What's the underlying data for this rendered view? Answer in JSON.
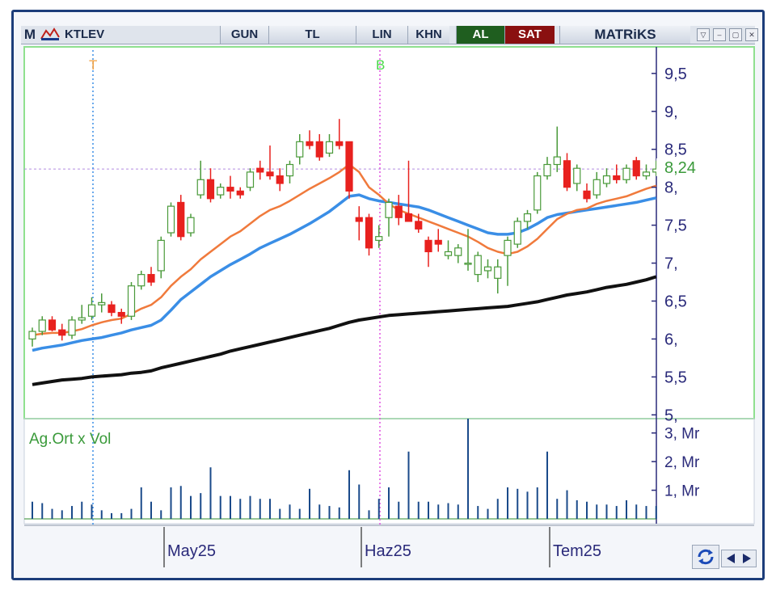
{
  "toolbar": {
    "logo": "M",
    "symbol": "KTLEV",
    "period": "GUN",
    "currency": "TL",
    "scale": "LIN",
    "khn": "KHN",
    "buy": "AL",
    "sell": "SAT",
    "brand": "MATRiKS"
  },
  "markers": {
    "t": "T",
    "b": "B"
  },
  "price_label": "8,24",
  "volume_label": "Ag.Ort x Vol",
  "x_labels": [
    "May25",
    "Haz25",
    "Tem25"
  ],
  "colors": {
    "up": "#4a9a3a",
    "down": "#e8211e",
    "ma_short": "#f07a3c",
    "ma_mid": "#3a8ee6",
    "ma_long": "#111111",
    "axis": "#2a2a7a"
  },
  "chart_data": [
    {
      "type": "candlestick",
      "y_ticks": [
        "5,",
        "5,5",
        "6,",
        "6,5",
        "7,",
        "7,5",
        "8,",
        "8,5",
        "9,",
        "9,5"
      ],
      "ylim": [
        4.95,
        9.85
      ],
      "last_price": 8.24,
      "ohlc": [
        [
          6.0,
          6.15,
          5.9,
          6.1
        ],
        [
          6.1,
          6.3,
          6.05,
          6.25
        ],
        [
          6.25,
          6.3,
          6.1,
          6.12
        ],
        [
          6.12,
          6.2,
          5.98,
          6.05
        ],
        [
          6.05,
          6.3,
          6.0,
          6.25
        ],
        [
          6.25,
          6.45,
          6.2,
          6.28
        ],
        [
          6.3,
          6.55,
          6.25,
          6.45
        ],
        [
          6.45,
          6.6,
          6.35,
          6.48
        ],
        [
          6.45,
          6.5,
          6.3,
          6.35
        ],
        [
          6.35,
          6.4,
          6.2,
          6.3
        ],
        [
          6.3,
          6.75,
          6.25,
          6.7
        ],
        [
          6.7,
          6.9,
          6.65,
          6.85
        ],
        [
          6.85,
          6.95,
          6.7,
          6.75
        ],
        [
          6.9,
          7.35,
          6.8,
          7.3
        ],
        [
          7.4,
          7.8,
          7.35,
          7.75
        ],
        [
          7.8,
          7.9,
          7.3,
          7.35
        ],
        [
          7.4,
          7.65,
          7.35,
          7.6
        ],
        [
          7.9,
          8.35,
          7.85,
          8.1
        ],
        [
          8.1,
          8.25,
          7.8,
          7.85
        ],
        [
          7.9,
          8.05,
          7.85,
          8.0
        ],
        [
          8.0,
          8.15,
          7.85,
          7.95
        ],
        [
          7.95,
          8.0,
          7.85,
          7.9
        ],
        [
          8.0,
          8.25,
          7.95,
          8.2
        ],
        [
          8.25,
          8.35,
          8.1,
          8.2
        ],
        [
          8.2,
          8.55,
          8.1,
          8.15
        ],
        [
          8.15,
          8.25,
          7.95,
          8.05
        ],
        [
          8.15,
          8.35,
          8.05,
          8.3
        ],
        [
          8.4,
          8.7,
          8.3,
          8.6
        ],
        [
          8.6,
          8.75,
          8.5,
          8.55
        ],
        [
          8.6,
          8.7,
          8.35,
          8.4
        ],
        [
          8.45,
          8.7,
          8.4,
          8.6
        ],
        [
          8.6,
          8.9,
          8.5,
          8.55
        ],
        [
          8.6,
          8.6,
          7.85,
          7.95
        ],
        [
          7.6,
          7.75,
          7.3,
          7.55
        ],
        [
          7.6,
          7.65,
          7.1,
          7.2
        ],
        [
          7.3,
          7.5,
          7.2,
          7.35
        ],
        [
          7.6,
          7.85,
          7.35,
          7.8
        ],
        [
          7.75,
          7.9,
          7.5,
          7.6
        ],
        [
          7.65,
          8.35,
          7.55,
          7.55
        ],
        [
          7.55,
          7.65,
          7.4,
          7.45
        ],
        [
          7.3,
          7.35,
          6.95,
          7.15
        ],
        [
          7.3,
          7.45,
          7.15,
          7.25
        ],
        [
          7.1,
          7.3,
          7.05,
          7.15
        ],
        [
          7.1,
          7.25,
          7.0,
          7.2
        ],
        [
          7.0,
          7.45,
          6.9,
          7.0
        ],
        [
          6.85,
          7.15,
          6.75,
          7.1
        ],
        [
          6.9,
          7.05,
          6.8,
          6.95
        ],
        [
          6.8,
          7.05,
          6.6,
          6.95
        ],
        [
          7.1,
          7.35,
          6.7,
          7.3
        ],
        [
          7.25,
          7.6,
          7.2,
          7.55
        ],
        [
          7.55,
          7.7,
          7.45,
          7.65
        ],
        [
          7.7,
          8.2,
          7.65,
          8.15
        ],
        [
          8.15,
          8.4,
          8.1,
          8.3
        ],
        [
          8.3,
          8.8,
          8.2,
          8.4
        ],
        [
          8.35,
          8.45,
          7.95,
          8.0
        ],
        [
          8.05,
          8.3,
          7.95,
          8.25
        ],
        [
          7.95,
          8.05,
          7.8,
          7.85
        ],
        [
          7.9,
          8.2,
          7.85,
          8.1
        ],
        [
          8.05,
          8.25,
          8.0,
          8.15
        ],
        [
          8.15,
          8.3,
          8.05,
          8.1
        ],
        [
          8.1,
          8.3,
          8.05,
          8.25
        ],
        [
          8.35,
          8.4,
          8.1,
          8.15
        ],
        [
          8.15,
          8.3,
          8.1,
          8.2
        ],
        [
          8.2,
          8.35,
          8.15,
          8.24
        ]
      ],
      "ma_short": [
        6.05,
        6.07,
        6.08,
        6.08,
        6.1,
        6.13,
        6.18,
        6.22,
        6.25,
        6.27,
        6.33,
        6.4,
        6.45,
        6.55,
        6.7,
        6.82,
        6.92,
        7.05,
        7.15,
        7.25,
        7.35,
        7.42,
        7.52,
        7.62,
        7.7,
        7.75,
        7.82,
        7.9,
        7.98,
        8.05,
        8.12,
        8.2,
        8.3,
        8.2,
        8.0,
        7.9,
        7.78,
        7.7,
        7.65,
        7.6,
        7.55,
        7.5,
        7.45,
        7.4,
        7.35,
        7.28,
        7.2,
        7.15,
        7.12,
        7.15,
        7.22,
        7.32,
        7.45,
        7.58,
        7.65,
        7.7,
        7.72,
        7.78,
        7.82,
        7.85,
        7.88,
        7.93,
        7.98,
        8.02
      ],
      "ma_mid": [
        5.85,
        5.88,
        5.9,
        5.92,
        5.95,
        5.98,
        6.0,
        6.02,
        6.05,
        6.08,
        6.12,
        6.15,
        6.18,
        6.25,
        6.38,
        6.52,
        6.62,
        6.72,
        6.82,
        6.9,
        6.98,
        7.05,
        7.12,
        7.2,
        7.26,
        7.32,
        7.38,
        7.45,
        7.52,
        7.6,
        7.68,
        7.78,
        7.88,
        7.9,
        7.85,
        7.82,
        7.8,
        7.78,
        7.76,
        7.74,
        7.7,
        7.65,
        7.6,
        7.55,
        7.5,
        7.45,
        7.4,
        7.38,
        7.38,
        7.4,
        7.45,
        7.52,
        7.6,
        7.64,
        7.66,
        7.68,
        7.7,
        7.72,
        7.74,
        7.76,
        7.78,
        7.8,
        7.83,
        7.86
      ],
      "ma_long": [
        5.4,
        5.42,
        5.44,
        5.46,
        5.47,
        5.48,
        5.5,
        5.51,
        5.52,
        5.53,
        5.55,
        5.56,
        5.58,
        5.62,
        5.65,
        5.68,
        5.71,
        5.74,
        5.77,
        5.8,
        5.84,
        5.87,
        5.9,
        5.93,
        5.96,
        5.99,
        6.02,
        6.05,
        6.08,
        6.11,
        6.14,
        6.18,
        6.22,
        6.25,
        6.27,
        6.29,
        6.31,
        6.32,
        6.33,
        6.34,
        6.35,
        6.36,
        6.37,
        6.38,
        6.39,
        6.4,
        6.41,
        6.42,
        6.43,
        6.45,
        6.47,
        6.49,
        6.52,
        6.55,
        6.58,
        6.6,
        6.62,
        6.65,
        6.68,
        6.7,
        6.72,
        6.75,
        6.78,
        6.82
      ]
    },
    {
      "type": "bar",
      "name": "Ag.Ort x Vol",
      "y_ticks": [
        "1, Mr",
        "2, Mr",
        "3, Mr"
      ],
      "ylim": [
        0,
        3.5
      ],
      "values": [
        0.6,
        0.55,
        0.35,
        0.3,
        0.45,
        0.6,
        0.5,
        0.3,
        0.2,
        0.2,
        0.35,
        1.1,
        0.6,
        0.3,
        1.1,
        1.15,
        0.8,
        0.9,
        1.8,
        0.8,
        0.8,
        0.7,
        0.8,
        0.7,
        0.7,
        0.35,
        0.5,
        0.35,
        1.05,
        0.5,
        0.45,
        0.4,
        1.7,
        1.2,
        0.3,
        0.7,
        1.1,
        0.6,
        2.35,
        0.6,
        0.6,
        0.5,
        0.55,
        0.5,
        3.5,
        0.45,
        0.35,
        0.7,
        1.1,
        1.05,
        0.95,
        1.1,
        2.35,
        0.7,
        1.0,
        0.65,
        0.6,
        0.5,
        0.5,
        0.45,
        0.65,
        0.5,
        0.45,
        0.45
      ]
    }
  ]
}
